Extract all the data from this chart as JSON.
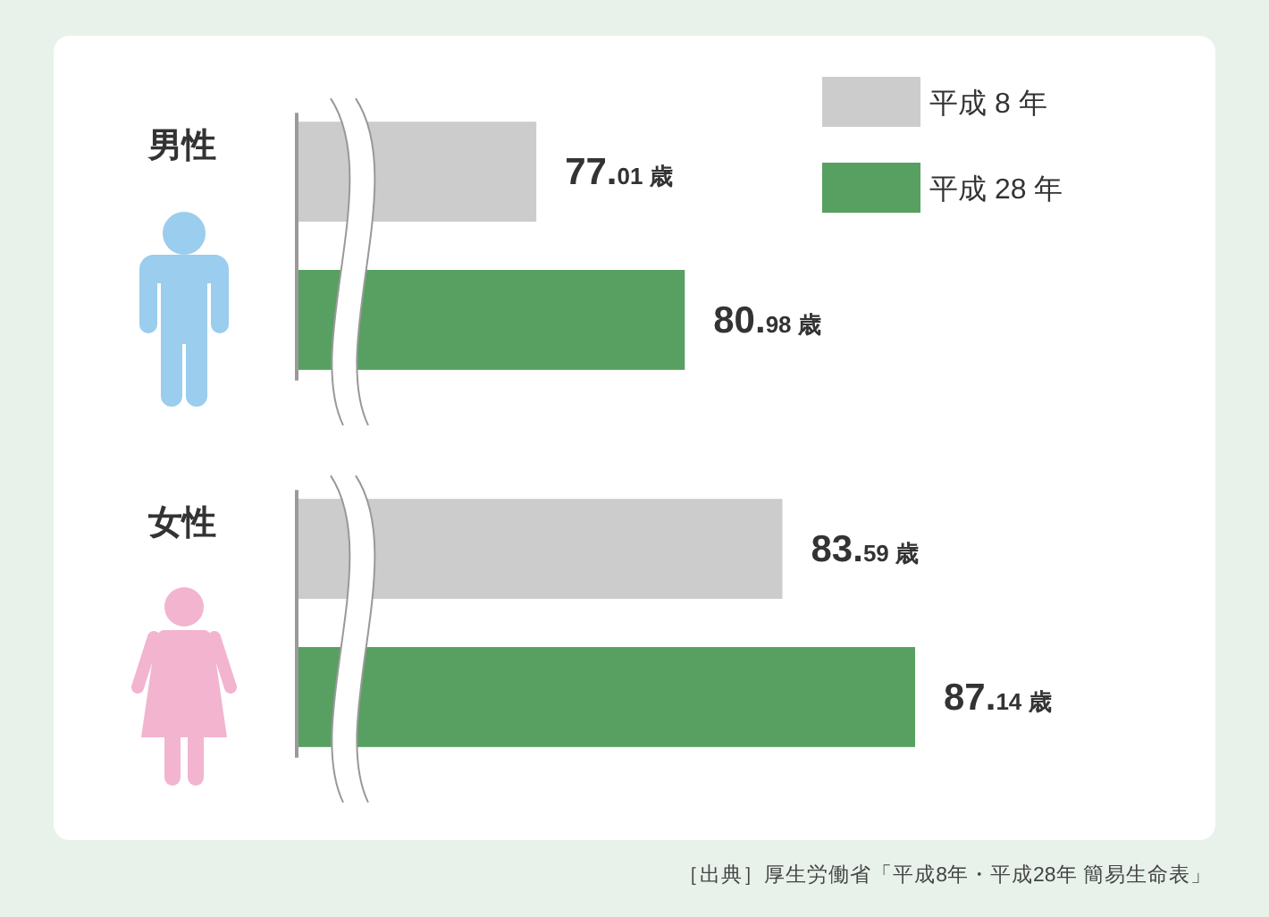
{
  "chart_data": {
    "type": "bar",
    "orientation": "horizontal",
    "categories": [
      "男性",
      "女性"
    ],
    "series": [
      {
        "name": "平成 8 年",
        "color": "#cccccc",
        "values": [
          77.01,
          83.59
        ],
        "value_labels": [
          "77.01 歳",
          "83.59 歳"
        ]
      },
      {
        "name": "平成 28 年",
        "color": "#57a061",
        "values": [
          80.98,
          87.14
        ],
        "value_labels": [
          "80.98 歳",
          "87.14 歳"
        ]
      }
    ],
    "xlim": [
      70.6,
      87.14
    ],
    "tick_labels": "y",
    "legend": "top right",
    "annotations": [
      "［出典］厚生労働省「平成8年・平成28年 簡易生命表」"
    ]
  }
}
